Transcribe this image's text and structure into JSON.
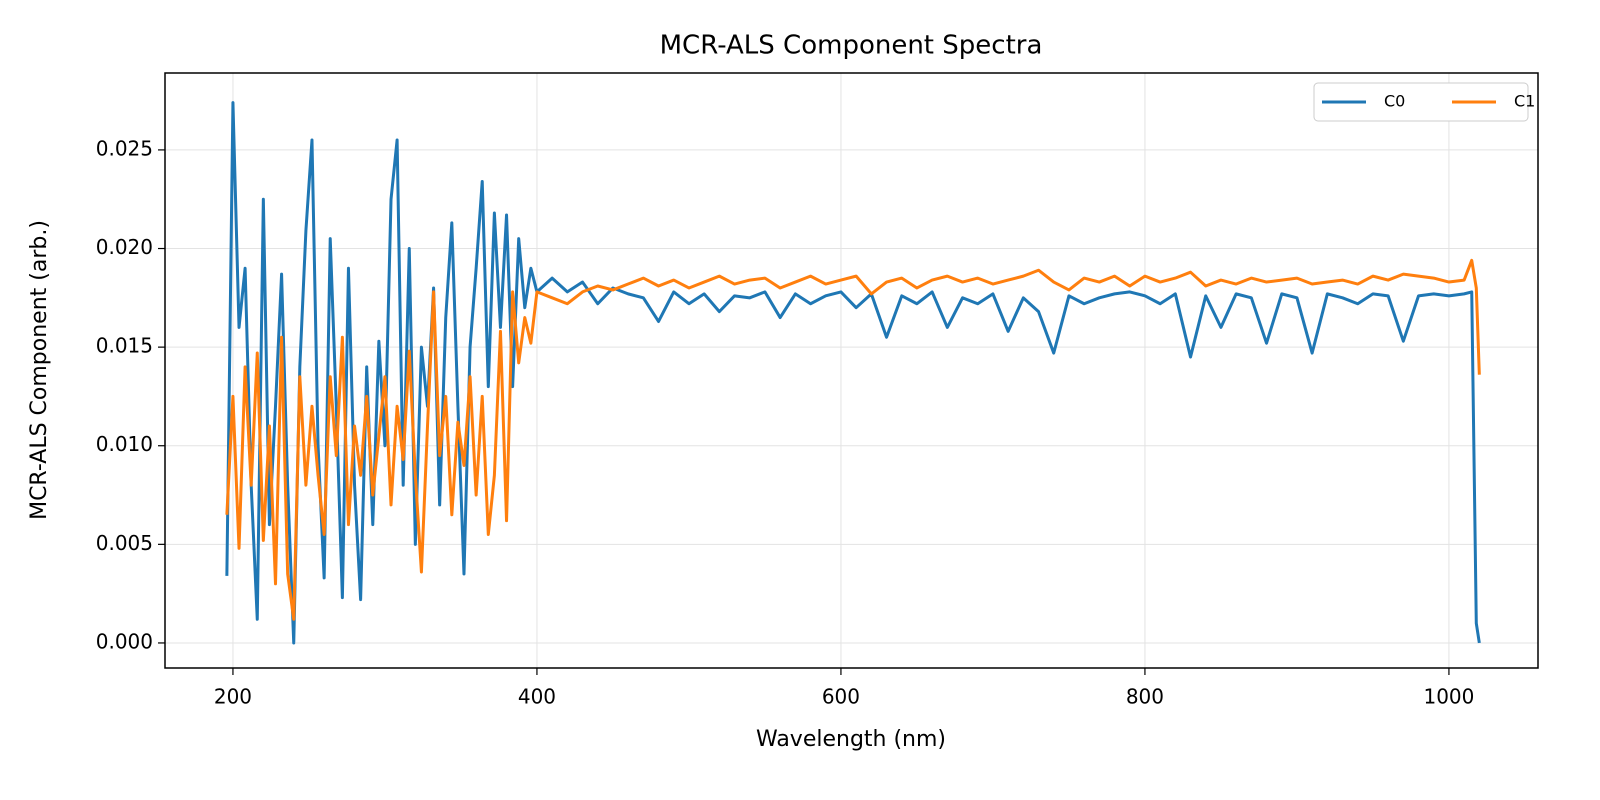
{
  "chart_data": {
    "type": "line",
    "title": "MCR-ALS Component Spectra",
    "x_label": "Wavelength (nm)",
    "y_label": "MCR-ALS Component (arb.)",
    "x": [
      196,
      200,
      204,
      208,
      212,
      216,
      220,
      224,
      228,
      232,
      236,
      240,
      244,
      248,
      252,
      256,
      260,
      264,
      268,
      272,
      276,
      280,
      284,
      288,
      292,
      296,
      300,
      304,
      308,
      312,
      316,
      320,
      324,
      328,
      332,
      336,
      340,
      344,
      348,
      352,
      356,
      360,
      364,
      368,
      372,
      376,
      380,
      384,
      388,
      392,
      396,
      400,
      410,
      420,
      430,
      440,
      450,
      460,
      470,
      480,
      490,
      500,
      510,
      520,
      530,
      540,
      550,
      560,
      570,
      580,
      590,
      600,
      610,
      620,
      630,
      640,
      650,
      660,
      670,
      680,
      690,
      700,
      710,
      720,
      730,
      740,
      750,
      760,
      770,
      780,
      790,
      800,
      810,
      820,
      830,
      840,
      850,
      860,
      870,
      880,
      890,
      900,
      910,
      920,
      930,
      940,
      950,
      960,
      970,
      980,
      990,
      1000,
      1010,
      1015,
      1018,
      1020
    ],
    "series": [
      {
        "name": "C0",
        "color": "#1f77b4",
        "values": [
          0.0034,
          0.0274,
          0.016,
          0.019,
          0.008,
          0.0012,
          0.0225,
          0.006,
          0.012,
          0.0187,
          0.008,
          0.0,
          0.014,
          0.0209,
          0.0255,
          0.01,
          0.0033,
          0.0205,
          0.012,
          0.0023,
          0.019,
          0.008,
          0.0022,
          0.014,
          0.006,
          0.0153,
          0.01,
          0.0225,
          0.0255,
          0.008,
          0.02,
          0.005,
          0.015,
          0.012,
          0.018,
          0.007,
          0.0165,
          0.0213,
          0.012,
          0.0035,
          0.015,
          0.019,
          0.0234,
          0.013,
          0.0218,
          0.016,
          0.0217,
          0.013,
          0.0205,
          0.017,
          0.019,
          0.0178,
          0.0185,
          0.0178,
          0.0183,
          0.0172,
          0.018,
          0.0177,
          0.0175,
          0.0163,
          0.0178,
          0.0172,
          0.0177,
          0.0168,
          0.0176,
          0.0175,
          0.0178,
          0.0165,
          0.0177,
          0.0172,
          0.0176,
          0.0178,
          0.017,
          0.0177,
          0.0155,
          0.0176,
          0.0172,
          0.0178,
          0.016,
          0.0175,
          0.0172,
          0.0177,
          0.0158,
          0.0175,
          0.0168,
          0.0147,
          0.0176,
          0.0172,
          0.0175,
          0.0177,
          0.0178,
          0.0176,
          0.0172,
          0.0177,
          0.0145,
          0.0176,
          0.016,
          0.0177,
          0.0175,
          0.0152,
          0.0177,
          0.0175,
          0.0147,
          0.0177,
          0.0175,
          0.0172,
          0.0177,
          0.0176,
          0.0153,
          0.0176,
          0.0177,
          0.0176,
          0.0177,
          0.0178,
          0.001,
          0.0
        ]
      },
      {
        "name": "C1",
        "color": "#ff7f0e",
        "values": [
          0.0065,
          0.0125,
          0.0048,
          0.014,
          0.008,
          0.0147,
          0.0052,
          0.011,
          0.003,
          0.0155,
          0.0035,
          0.0012,
          0.0135,
          0.008,
          0.012,
          0.0085,
          0.0055,
          0.0135,
          0.0095,
          0.0155,
          0.006,
          0.011,
          0.0085,
          0.0125,
          0.0075,
          0.0105,
          0.0135,
          0.007,
          0.012,
          0.0093,
          0.0148,
          0.0085,
          0.0036,
          0.011,
          0.0178,
          0.0095,
          0.0125,
          0.0065,
          0.0112,
          0.009,
          0.0135,
          0.0075,
          0.0125,
          0.0055,
          0.0085,
          0.0158,
          0.0062,
          0.0178,
          0.0142,
          0.0165,
          0.0152,
          0.0178,
          0.0175,
          0.0172,
          0.0178,
          0.0181,
          0.0179,
          0.0182,
          0.0185,
          0.0181,
          0.0184,
          0.018,
          0.0183,
          0.0186,
          0.0182,
          0.0184,
          0.0185,
          0.018,
          0.0183,
          0.0186,
          0.0182,
          0.0184,
          0.0186,
          0.0177,
          0.0183,
          0.0185,
          0.018,
          0.0184,
          0.0186,
          0.0183,
          0.0185,
          0.0182,
          0.0184,
          0.0186,
          0.0189,
          0.0183,
          0.0179,
          0.0185,
          0.0183,
          0.0186,
          0.0181,
          0.0186,
          0.0183,
          0.0185,
          0.0188,
          0.0181,
          0.0184,
          0.0182,
          0.0185,
          0.0183,
          0.0184,
          0.0185,
          0.0182,
          0.0183,
          0.0184,
          0.0182,
          0.0186,
          0.0184,
          0.0187,
          0.0186,
          0.0185,
          0.0183,
          0.0184,
          0.0194,
          0.018,
          0.0136
        ]
      }
    ],
    "xlim": [
      155.3,
      1058.6
    ],
    "ylim": [
      -0.00127,
      0.0289
    ],
    "xticks": [
      200,
      400,
      600,
      800,
      1000
    ],
    "yticks": [
      {
        "value": 0,
        "label": "0.000"
      },
      0.005,
      {
        "value": 0.01,
        "label": "0.010"
      },
      0.015,
      {
        "value": 0.02,
        "label": "0.020"
      },
      0.025
    ],
    "grid": true,
    "legend": "upper right"
  }
}
